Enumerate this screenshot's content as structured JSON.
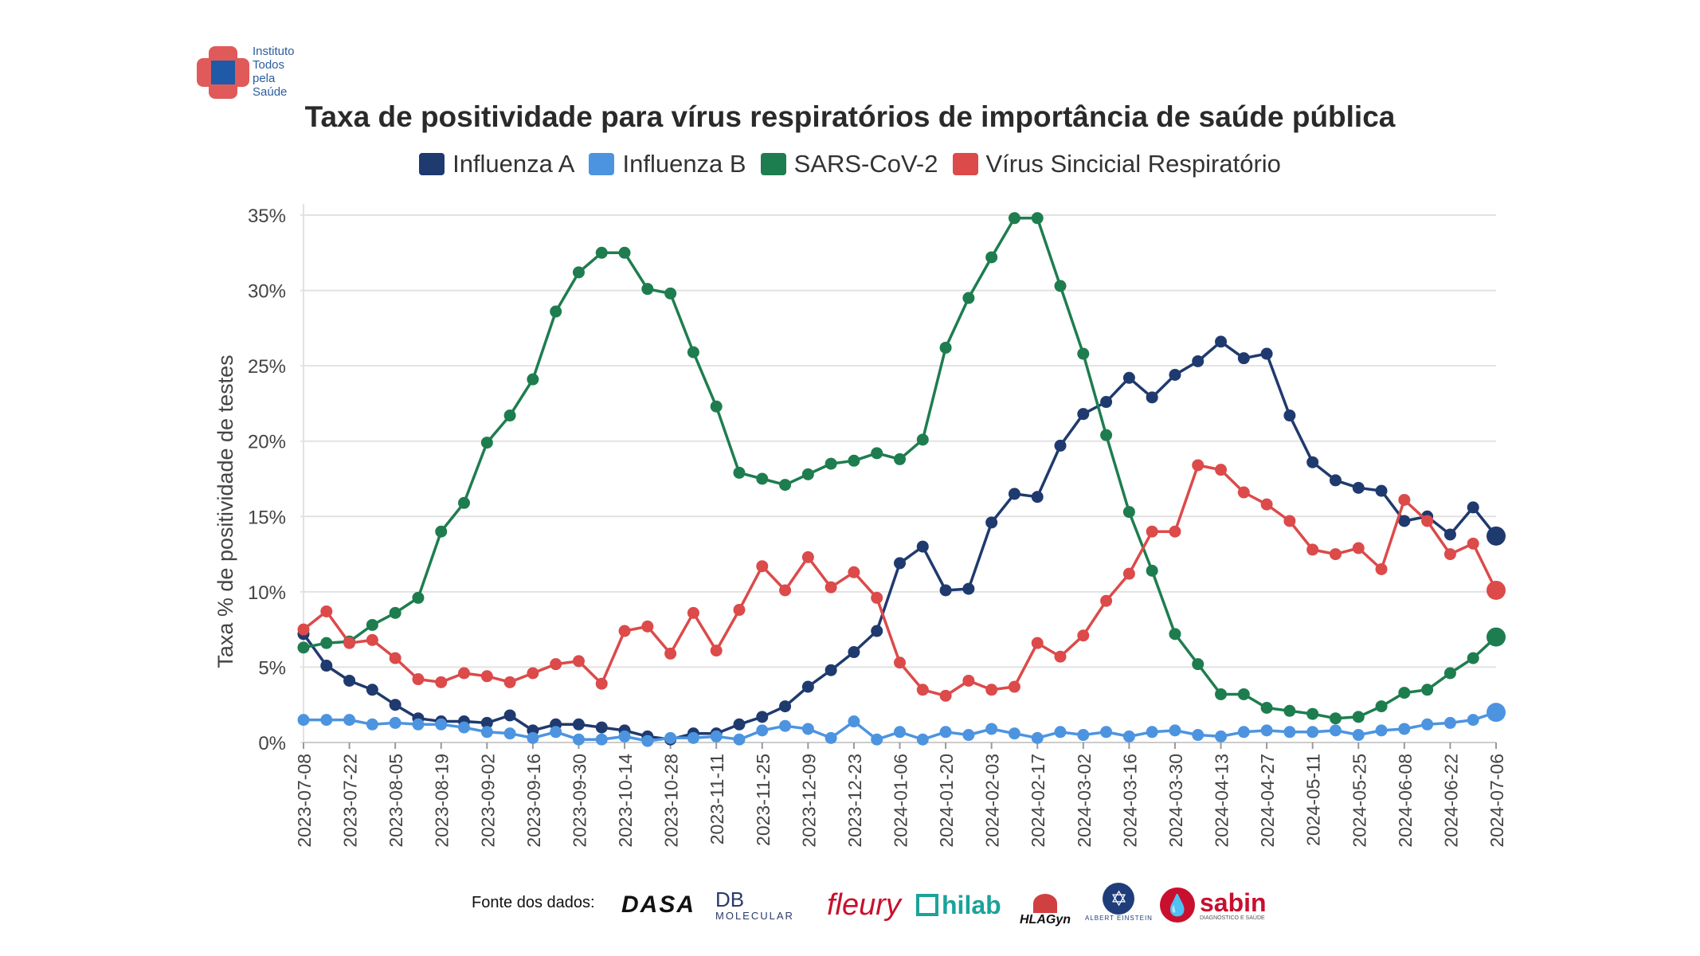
{
  "logo": {
    "lines": [
      "Instituto",
      "Todos",
      "pela",
      "Saúde"
    ],
    "colors": {
      "red": "#e05a5a",
      "blue": "#1f5aa8"
    }
  },
  "sources": {
    "label": "Fonte dos dados:",
    "logos": [
      {
        "name": "dasa",
        "text": "DASA",
        "color": "#111111"
      },
      {
        "name": "db-molecular",
        "text": "DB",
        "sub": "MOLECULAR",
        "color": "#2b3a6b"
      },
      {
        "name": "fleury",
        "text": "fleury",
        "color": "#c8102e"
      },
      {
        "name": "hilab",
        "text": "hilab",
        "color": "#1aa39a"
      },
      {
        "name": "hlagyn",
        "text": "HLAGyn",
        "color": "#111111"
      },
      {
        "name": "einstein",
        "text": "ALBERT EINSTEIN",
        "color": "#1f3d7a"
      },
      {
        "name": "sabin",
        "text": "sabin",
        "sub": "DIAGNÓSTICO E SAÚDE",
        "color": "#c8102e"
      }
    ]
  },
  "chart_data": {
    "type": "line",
    "title": "Taxa de positividade para vírus respiratórios de importância de saúde pública",
    "ylabel": "Taxa % de positividade de testes",
    "xlabel": "",
    "ylim": [
      0,
      35
    ],
    "yticks": [
      0,
      5,
      10,
      15,
      20,
      25,
      30,
      35
    ],
    "ytick_labels": [
      "0%",
      "5%",
      "10%",
      "15%",
      "20%",
      "25%",
      "30%",
      "35%"
    ],
    "xtick_labels": [
      "2023-07-08",
      "2023-07-22",
      "2023-08-05",
      "2023-08-19",
      "2023-09-02",
      "2023-09-16",
      "2023-09-30",
      "2023-10-14",
      "2023-10-28",
      "2023-11-11",
      "2023-11-25",
      "2023-12-09",
      "2023-12-23",
      "2024-01-06",
      "2024-01-20",
      "2024-02-03",
      "2024-02-17",
      "2024-03-02",
      "2024-03-16",
      "2024-03-30",
      "2024-04-13",
      "2024-04-27",
      "2024-05-11",
      "2024-05-25",
      "2024-06-08",
      "2024-06-22",
      "2024-07-06"
    ],
    "grid": true,
    "legend_position": "top-center",
    "x_start": "2023-07-08",
    "x_end": "2024-07-06",
    "series": [
      {
        "name": "Influenza A",
        "color": "#1f3a6e",
        "values": [
          7.2,
          5.1,
          4.1,
          3.5,
          2.5,
          1.6,
          1.4,
          1.4,
          1.3,
          1.8,
          0.8,
          1.2,
          1.2,
          1.0,
          0.8,
          0.4,
          0.2,
          0.6,
          0.6,
          1.2,
          1.7,
          2.4,
          3.7,
          4.8,
          6.0,
          7.4,
          11.9,
          13.0,
          10.1,
          10.2,
          14.6,
          16.5,
          16.3,
          19.7,
          21.8,
          22.6,
          24.2,
          22.9,
          24.4,
          25.3,
          26.6,
          25.5,
          25.8,
          21.7,
          18.6,
          17.4,
          16.9,
          16.7,
          14.7,
          15.0,
          13.8,
          15.6,
          13.7
        ]
      },
      {
        "name": "Influenza B",
        "color": "#4d94e0",
        "values": [
          1.5,
          1.5,
          1.5,
          1.2,
          1.3,
          1.2,
          1.2,
          1.0,
          0.7,
          0.6,
          0.3,
          0.7,
          0.2,
          0.2,
          0.4,
          0.1,
          0.3,
          0.3,
          0.4,
          0.2,
          0.8,
          1.1,
          0.9,
          0.3,
          1.4,
          0.2,
          0.7,
          0.2,
          0.7,
          0.5,
          0.9,
          0.6,
          0.3,
          0.7,
          0.5,
          0.7,
          0.4,
          0.7,
          0.8,
          0.5,
          0.4,
          0.7,
          0.8,
          0.7,
          0.7,
          0.8,
          0.5,
          0.8,
          0.9,
          1.2,
          1.3,
          1.5,
          2.0
        ]
      },
      {
        "name": "SARS-CoV-2",
        "color": "#1e7d4f",
        "values": [
          6.3,
          6.6,
          6.7,
          7.8,
          8.6,
          9.6,
          14.0,
          15.9,
          19.9,
          21.7,
          24.1,
          28.6,
          31.2,
          32.5,
          32.5,
          30.1,
          29.8,
          25.9,
          22.3,
          17.9,
          17.5,
          17.1,
          17.8,
          18.5,
          18.7,
          19.2,
          18.8,
          20.1,
          26.2,
          29.5,
          32.2,
          34.8,
          34.8,
          30.3,
          25.8,
          20.4,
          15.3,
          11.4,
          7.2,
          5.2,
          3.2,
          3.2,
          2.3,
          2.1,
          1.9,
          1.6,
          1.7,
          2.4,
          3.3,
          3.5,
          4.6,
          5.6,
          7.0
        ]
      },
      {
        "name": "Vírus Sincicial Respiratório",
        "color": "#dc4a4a",
        "values": [
          7.5,
          8.7,
          6.6,
          6.8,
          5.6,
          4.2,
          4.0,
          4.6,
          4.4,
          4.0,
          4.6,
          5.2,
          5.4,
          3.9,
          7.4,
          7.7,
          5.9,
          8.6,
          6.1,
          8.8,
          11.7,
          10.1,
          12.3,
          10.3,
          11.3,
          9.6,
          5.3,
          3.5,
          3.1,
          4.1,
          3.5,
          3.7,
          6.6,
          5.7,
          7.1,
          9.4,
          11.2,
          14.0,
          14.0,
          18.4,
          18.1,
          16.6,
          15.8,
          14.7,
          12.8,
          12.5,
          12.9,
          11.5,
          16.1,
          14.7,
          12.5,
          13.2,
          10.1
        ]
      }
    ]
  }
}
